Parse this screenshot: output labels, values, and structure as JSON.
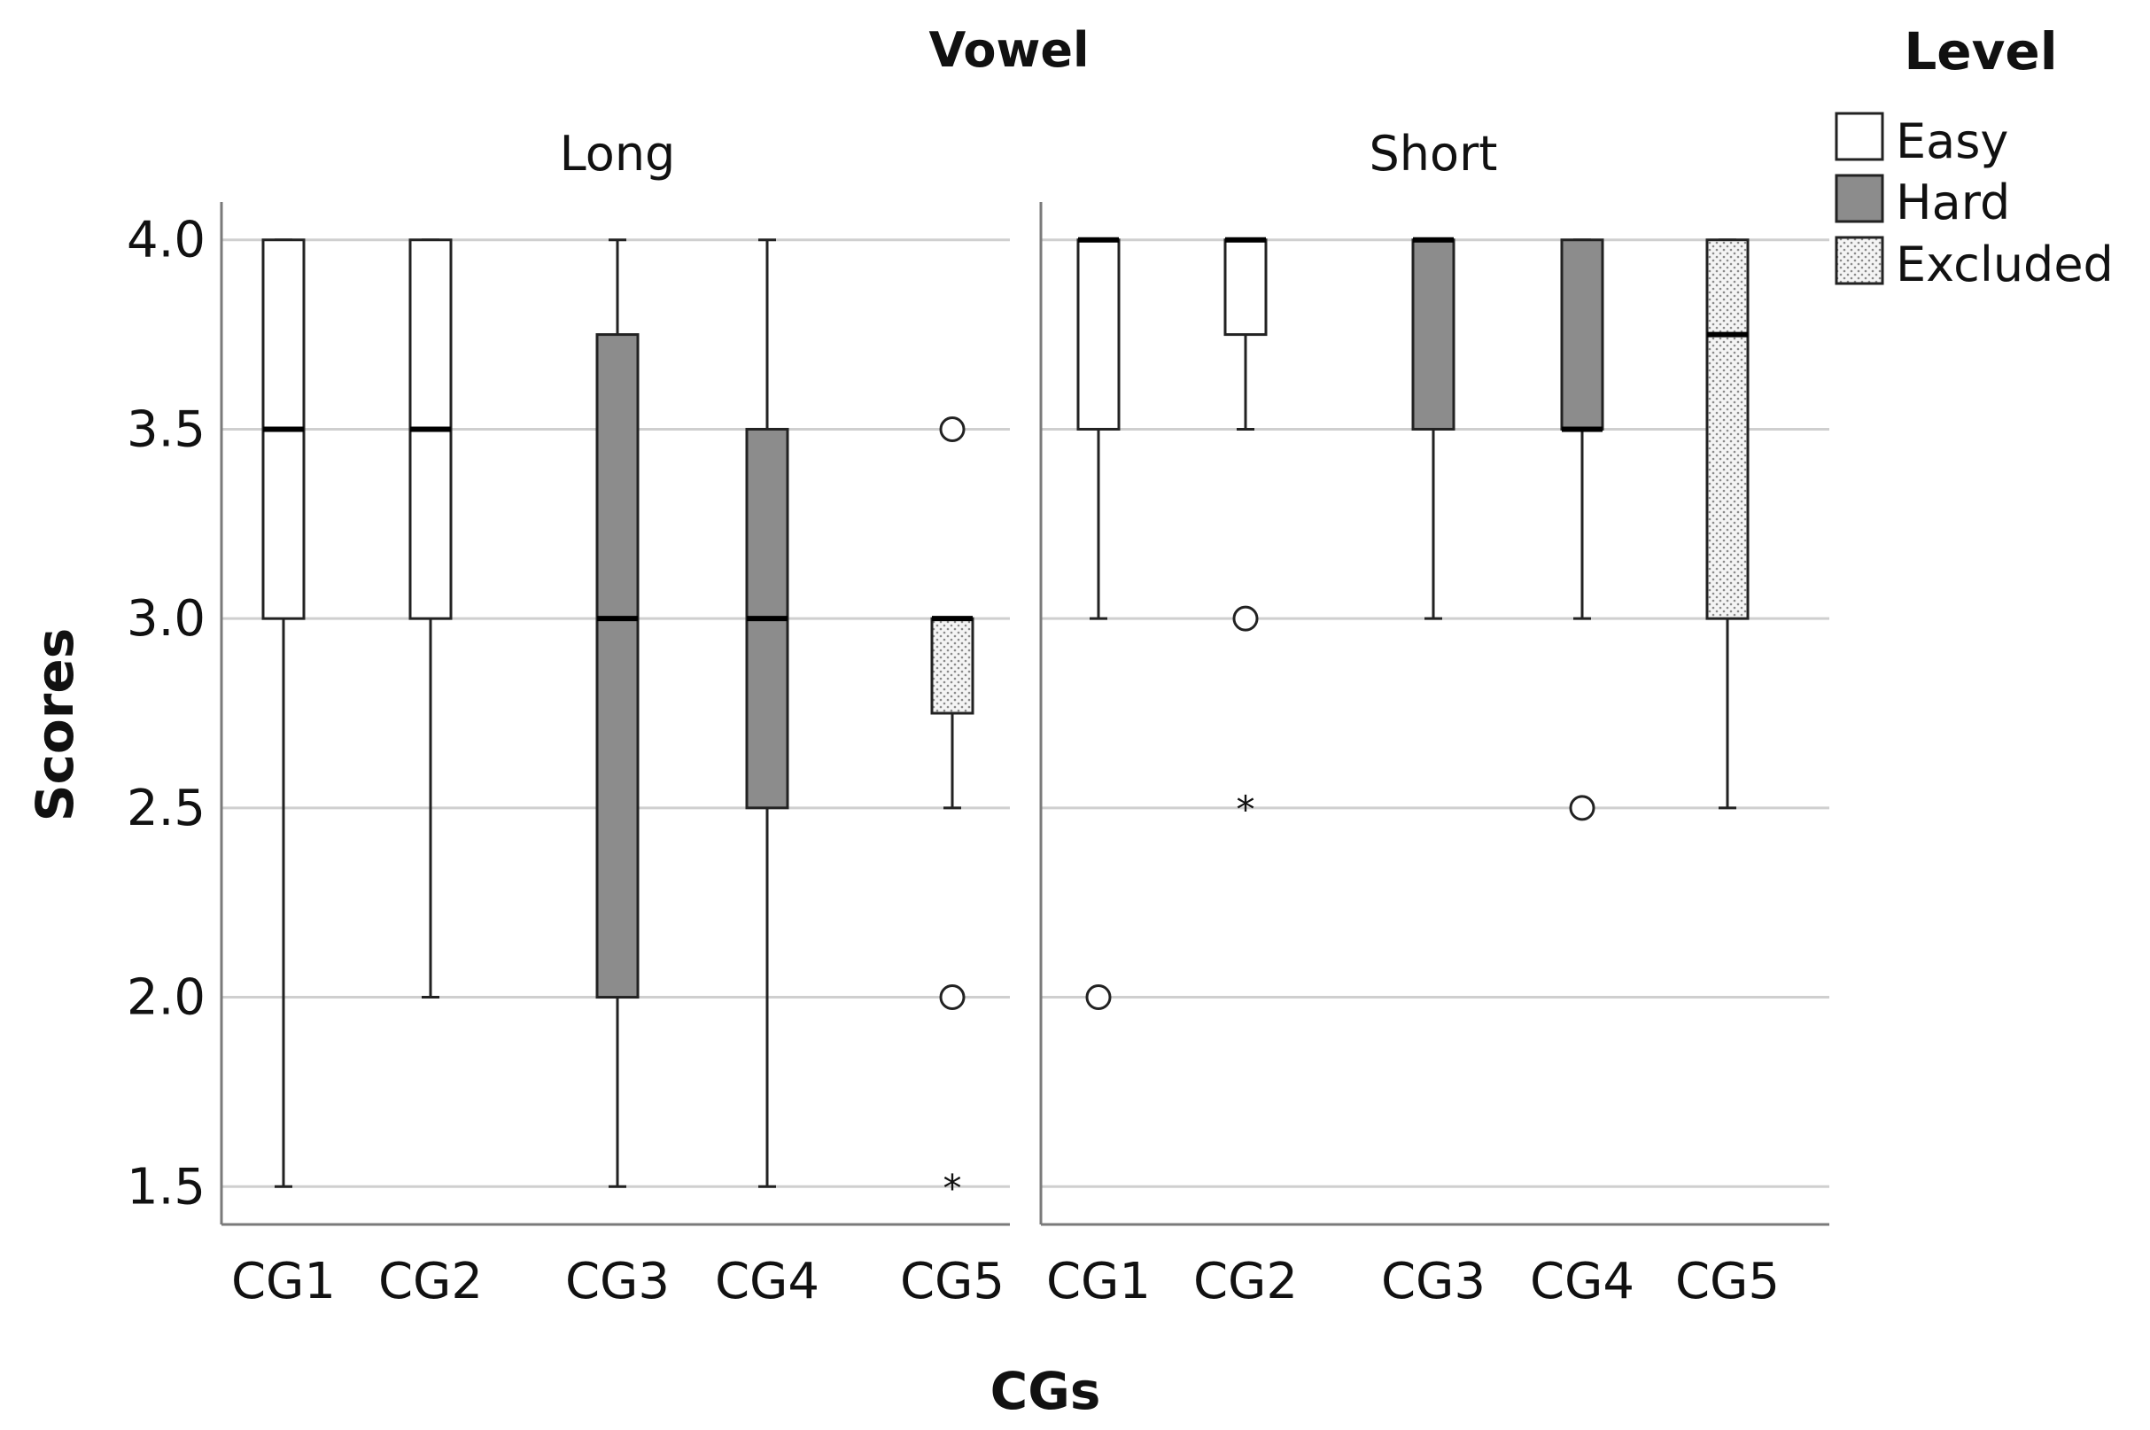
{
  "chart_data": {
    "type": "boxplot",
    "facet_title": "Vowel",
    "xlabel": "CGs",
    "ylabel": "Scores",
    "ylim": [
      1.4,
      4.1
    ],
    "yticks": [
      4.0,
      3.5,
      3.0,
      2.5,
      2.0,
      1.5
    ],
    "grid": true,
    "legend": {
      "title": "Level",
      "position": "top-right",
      "items": [
        {
          "label": "Easy",
          "fill": "white"
        },
        {
          "label": "Hard",
          "fill": "gray"
        },
        {
          "label": "Excluded",
          "fill": "dotted"
        }
      ]
    },
    "panels": [
      {
        "title": "Long",
        "categories": [
          "CG1",
          "CG2",
          "CG3",
          "CG4",
          "CG5"
        ],
        "boxes": [
          {
            "category": "CG1",
            "level": "Easy",
            "min": 1.5,
            "q1": 3.0,
            "median": 3.5,
            "q3": 4.0,
            "max": 4.0,
            "outliers": [],
            "extremes": []
          },
          {
            "category": "CG2",
            "level": "Easy",
            "min": 2.0,
            "q1": 3.0,
            "median": 3.5,
            "q3": 4.0,
            "max": 4.0,
            "outliers": [],
            "extremes": []
          },
          {
            "category": "CG3",
            "level": "Hard",
            "min": 1.5,
            "q1": 2.0,
            "median": 3.0,
            "q3": 3.75,
            "max": 4.0,
            "outliers": [],
            "extremes": []
          },
          {
            "category": "CG4",
            "level": "Hard",
            "min": 1.5,
            "q1": 2.5,
            "median": 3.0,
            "q3": 3.5,
            "max": 4.0,
            "outliers": [],
            "extremes": []
          },
          {
            "category": "CG5",
            "level": "Excluded",
            "min": 2.5,
            "q1": 2.75,
            "median": 3.0,
            "q3": 3.0,
            "max": 3.0,
            "outliers": [
              3.5,
              2.0
            ],
            "extremes": [
              1.5
            ]
          }
        ]
      },
      {
        "title": "Short",
        "categories": [
          "CG1",
          "CG2",
          "CG3",
          "CG4",
          "CG5"
        ],
        "boxes": [
          {
            "category": "CG1",
            "level": "Easy",
            "min": 3.0,
            "q1": 3.5,
            "median": 4.0,
            "q3": 4.0,
            "max": 4.0,
            "outliers": [
              2.0
            ],
            "extremes": []
          },
          {
            "category": "CG2",
            "level": "Easy",
            "min": 3.5,
            "q1": 3.75,
            "median": 4.0,
            "q3": 4.0,
            "max": 4.0,
            "outliers": [
              3.0
            ],
            "extremes": [
              2.5
            ]
          },
          {
            "category": "CG3",
            "level": "Hard",
            "min": 3.0,
            "q1": 3.5,
            "median": 4.0,
            "q3": 4.0,
            "max": 4.0,
            "outliers": [],
            "extremes": []
          },
          {
            "category": "CG4",
            "level": "Hard",
            "min": 3.0,
            "q1": 3.5,
            "median": 3.5,
            "q3": 4.0,
            "max": 4.0,
            "outliers": [
              2.5
            ],
            "extremes": []
          },
          {
            "category": "CG5",
            "level": "Excluded",
            "min": 2.5,
            "q1": 3.0,
            "median": 3.75,
            "q3": 4.0,
            "max": 4.0,
            "outliers": [],
            "extremes": []
          }
        ]
      }
    ]
  },
  "colors": {
    "Easy": "#ffffff",
    "Hard": "#8c8c8c",
    "Excluded": "#e9e9e9",
    "grid": "#cfcfcf",
    "axis": "#7a7a7a",
    "stroke": "#222222"
  }
}
